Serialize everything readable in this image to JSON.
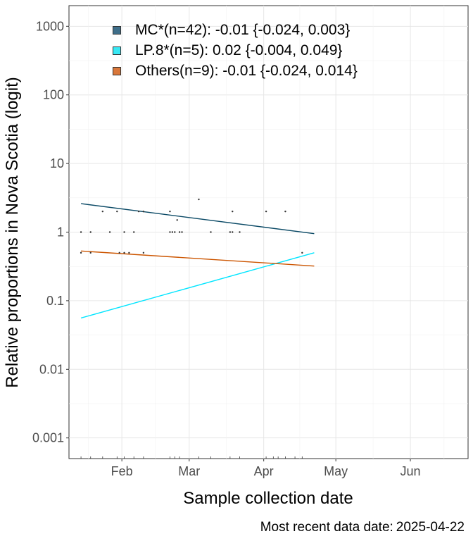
{
  "chart_data": {
    "type": "scatter",
    "y_scale": "logit",
    "xlabel": "Sample collection date",
    "ylabel": "Relative proportions in Nova Scotia (logit)",
    "x_ticks": [
      "Feb",
      "Mar",
      "Apr",
      "May",
      "Jun"
    ],
    "x_tick_dates": [
      "2025-02-01",
      "2025-03-01",
      "2025-04-01",
      "2025-05-01",
      "2025-06-01"
    ],
    "xlim": [
      "2025-01-10",
      "2025-06-25"
    ],
    "y_ticks": [
      "0.001",
      "0.01",
      "0.1",
      "1",
      "10",
      "100",
      "1000"
    ],
    "y_tick_values": [
      0.001,
      0.01,
      0.1,
      1,
      10,
      100,
      1000
    ],
    "ylim": [
      0.0005,
      2000
    ],
    "grid": true,
    "legend_position": "top-left",
    "series": [
      {
        "name": "MC*(n=42): -0.01 {-0.024, 0.003}",
        "color": "#0b4a66",
        "swatch": "#3f6f8a",
        "fit": [
          [
            "2025-01-15",
            2.6
          ],
          [
            "2025-04-22",
            0.95
          ]
        ]
      },
      {
        "name": "LP.8*(n=5): 0.02 {-0.004, 0.049}",
        "color": "#00e5ff",
        "swatch": "#38e8f4",
        "fit": [
          [
            "2025-01-15",
            0.056
          ],
          [
            "2025-04-22",
            0.5
          ]
        ]
      },
      {
        "name": "Others(n=9): -0.01 {-0.024, 0.014}",
        "color": "#cc5500",
        "swatch": "#d9773a",
        "fit": [
          [
            "2025-01-15",
            0.53
          ],
          [
            "2025-04-22",
            0.32
          ]
        ]
      }
    ],
    "points": [
      [
        "2025-01-15",
        1
      ],
      [
        "2025-01-15",
        0.5
      ],
      [
        "2025-01-19",
        1
      ],
      [
        "2025-01-19",
        0.5
      ],
      [
        "2025-01-24",
        2
      ],
      [
        "2025-01-27",
        1
      ],
      [
        "2025-01-30",
        2
      ],
      [
        "2025-01-31",
        0.5
      ],
      [
        "2025-02-02",
        1
      ],
      [
        "2025-02-02",
        0.5
      ],
      [
        "2025-02-04",
        0.5
      ],
      [
        "2025-02-06",
        1
      ],
      [
        "2025-02-08",
        2
      ],
      [
        "2025-02-10",
        2
      ],
      [
        "2025-02-10",
        0.5
      ],
      [
        "2025-02-21",
        2
      ],
      [
        "2025-02-21",
        1
      ],
      [
        "2025-02-22",
        1
      ],
      [
        "2025-02-23",
        1
      ],
      [
        "2025-02-24",
        1.5
      ],
      [
        "2025-02-25",
        1
      ],
      [
        "2025-02-26",
        1
      ],
      [
        "2025-03-05",
        3
      ],
      [
        "2025-03-10",
        1
      ],
      [
        "2025-03-18",
        1
      ],
      [
        "2025-03-19",
        1
      ],
      [
        "2025-03-19",
        2
      ],
      [
        "2025-03-22",
        1
      ],
      [
        "2025-04-02",
        2
      ],
      [
        "2025-04-10",
        2
      ],
      [
        "2025-04-17",
        0.5
      ]
    ],
    "rug_dates": [
      "2025-01-15",
      "2025-01-19",
      "2025-01-24",
      "2025-01-30",
      "2025-02-02",
      "2025-02-06",
      "2025-02-10",
      "2025-02-21",
      "2025-02-23",
      "2025-02-25",
      "2025-03-05",
      "2025-03-10",
      "2025-03-18",
      "2025-03-22",
      "2025-04-02",
      "2025-04-05",
      "2025-04-07",
      "2025-04-10",
      "2025-04-14",
      "2025-04-17"
    ]
  },
  "caption": {
    "label": "Most recent data date:",
    "date": "2025-04-22"
  }
}
